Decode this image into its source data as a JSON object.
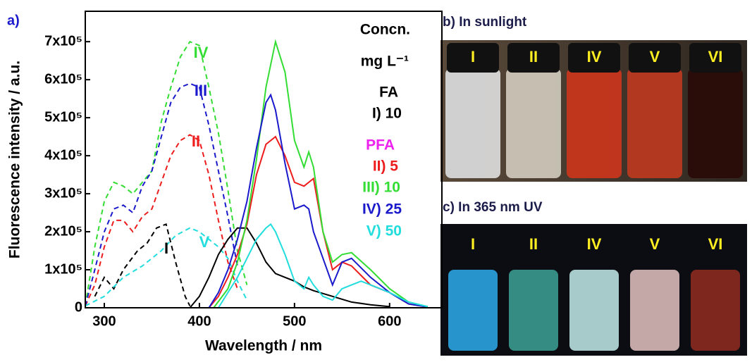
{
  "chart_data": {
    "type": "line",
    "panel_label": "a)",
    "x_label": "Wavelength / nm",
    "y_label": "Fluorescence intensity / a.u.",
    "xlim": [
      280,
      655
    ],
    "xticks": [
      300,
      400,
      500,
      600
    ],
    "ylim": [
      0,
      780000
    ],
    "yticks": [
      0,
      {
        "value": 100000,
        "label": "1x10⁵"
      },
      {
        "value": 200000,
        "label": "2x10⁵"
      },
      {
        "value": 300000,
        "label": "3x10⁵"
      },
      {
        "value": 400000,
        "label": "4x10⁵"
      },
      {
        "value": 500000,
        "label": "5x10⁵"
      },
      {
        "value": 600000,
        "label": "6x10⁵"
      },
      {
        "value": 700000,
        "label": "7x10⁵"
      }
    ],
    "series": [
      {
        "color": "#000000",
        "dash": true,
        "x": [
          290,
          300,
          310,
          320,
          335,
          345,
          355,
          365,
          375,
          385,
          390
        ],
        "values": [
          30000,
          80000,
          50000,
          100000,
          150000,
          170000,
          210000,
          220000,
          120000,
          30000,
          5000
        ]
      },
      {
        "color": "#ee1c1c",
        "dash": true,
        "x": [
          280,
          290,
          300,
          310,
          320,
          330,
          340,
          350,
          360,
          370,
          380,
          390,
          400,
          410,
          420,
          430,
          440
        ],
        "values": [
          5000,
          60000,
          160000,
          230000,
          230000,
          200000,
          240000,
          260000,
          330000,
          400000,
          440000,
          455000,
          440000,
          350000,
          230000,
          120000,
          50000
        ]
      },
      {
        "color": "#33dd33",
        "dash": true,
        "x": [
          280,
          290,
          300,
          310,
          320,
          330,
          340,
          350,
          360,
          370,
          380,
          390,
          400,
          410,
          420,
          430,
          440,
          450
        ],
        "values": [
          5000,
          160000,
          280000,
          330000,
          320000,
          300000,
          330000,
          360000,
          490000,
          580000,
          660000,
          700000,
          690000,
          580000,
          460000,
          310000,
          150000,
          60000
        ]
      },
      {
        "color": "#1a1acc",
        "dash": true,
        "x": [
          280,
          290,
          300,
          310,
          320,
          330,
          340,
          350,
          360,
          370,
          380,
          390,
          400,
          410,
          420,
          430,
          440
        ],
        "values": [
          5000,
          100000,
          200000,
          260000,
          270000,
          250000,
          320000,
          360000,
          450000,
          540000,
          580000,
          590000,
          580000,
          480000,
          360000,
          240000,
          110000
        ]
      },
      {
        "color": "#22dddd",
        "dash": true,
        "x": [
          280,
          300,
          320,
          340,
          360,
          375,
          390,
          400,
          410,
          420,
          430,
          440,
          450
        ],
        "values": [
          5000,
          30000,
          80000,
          110000,
          150000,
          190000,
          210000,
          200000,
          180000,
          160000,
          130000,
          70000,
          20000
        ]
      },
      {
        "color": "#000000",
        "dash": false,
        "x": [
          390,
          400,
          410,
          420,
          430,
          440,
          450,
          460,
          470,
          480,
          490,
          500,
          510,
          520,
          540,
          560,
          580,
          600
        ],
        "values": [
          0,
          30000,
          80000,
          140000,
          180000,
          210000,
          210000,
          170000,
          120000,
          90000,
          80000,
          70000,
          55000,
          45000,
          30000,
          15000,
          8000,
          3000
        ]
      },
      {
        "color": "#ee1c1c",
        "dash": false,
        "x": [
          410,
          420,
          430,
          440,
          450,
          460,
          470,
          480,
          490,
          500,
          510,
          520,
          530,
          540,
          550,
          560,
          580,
          600,
          620,
          640
        ],
        "values": [
          0,
          30000,
          80000,
          140000,
          220000,
          350000,
          430000,
          450000,
          400000,
          330000,
          320000,
          340000,
          200000,
          100000,
          120000,
          110000,
          60000,
          40000,
          10000,
          2000
        ]
      },
      {
        "color": "#33dd33",
        "dash": false,
        "x": [
          415,
          430,
          440,
          450,
          460,
          470,
          480,
          490,
          500,
          510,
          515,
          520,
          530,
          540,
          550,
          560,
          580,
          600,
          620,
          640
        ],
        "values": [
          0,
          50000,
          120000,
          230000,
          390000,
          580000,
          700000,
          620000,
          440000,
          370000,
          410000,
          370000,
          200000,
          120000,
          140000,
          145000,
          100000,
          50000,
          15000,
          3000
        ]
      },
      {
        "color": "#1a1acc",
        "dash": false,
        "x": [
          410,
          420,
          430,
          440,
          450,
          460,
          470,
          475,
          480,
          490,
          500,
          510,
          515,
          520,
          530,
          540,
          550,
          560,
          580,
          600,
          620,
          640
        ],
        "values": [
          0,
          40000,
          100000,
          180000,
          280000,
          420000,
          540000,
          560000,
          520000,
          380000,
          260000,
          270000,
          260000,
          200000,
          130000,
          60000,
          120000,
          130000,
          80000,
          40000,
          10000,
          2000
        ]
      },
      {
        "color": "#22dddd",
        "dash": false,
        "x": [
          420,
          430,
          440,
          450,
          460,
          470,
          475,
          480,
          490,
          500,
          510,
          515,
          520,
          530,
          540,
          550,
          560,
          570,
          580,
          600,
          620,
          640
        ],
        "values": [
          0,
          40000,
          80000,
          130000,
          180000,
          210000,
          220000,
          200000,
          140000,
          70000,
          50000,
          80000,
          60000,
          30000,
          20000,
          50000,
          60000,
          70000,
          60000,
          40000,
          15000,
          3000
        ]
      }
    ],
    "annotations": [
      {
        "text": "IV",
        "color": "#33dd33"
      },
      {
        "text": "III",
        "color": "#1a1acc"
      },
      {
        "text": "II",
        "color": "#ee1c1c"
      },
      {
        "text": "I",
        "color": "#000000"
      },
      {
        "text": "V",
        "color": "#22dddd"
      }
    ],
    "legend_text": [
      {
        "text": "Concn.",
        "color": "#000000"
      },
      {
        "text": "mg L⁻¹",
        "color": "#000000"
      },
      {
        "text": "FA",
        "color": "#000000"
      },
      {
        "text": "I) 10",
        "color": "#000000"
      },
      {
        "text": "PFA",
        "color": "#ee22ee"
      },
      {
        "text": "II) 5",
        "color": "#ee1c1c"
      },
      {
        "text": "III) 10",
        "color": "#33dd33"
      },
      {
        "text": "IV) 25",
        "color": "#1a1acc"
      },
      {
        "text": "V) 50",
        "color": "#22dddd"
      }
    ]
  },
  "photos": [
    {
      "title": "b) In sunlight",
      "vials": [
        "I",
        "II",
        "IV",
        "V",
        "VI"
      ]
    },
    {
      "title": "c) In 365 nm UV",
      "vials": [
        "I",
        "II",
        "IV",
        "V",
        "VI"
      ]
    }
  ]
}
